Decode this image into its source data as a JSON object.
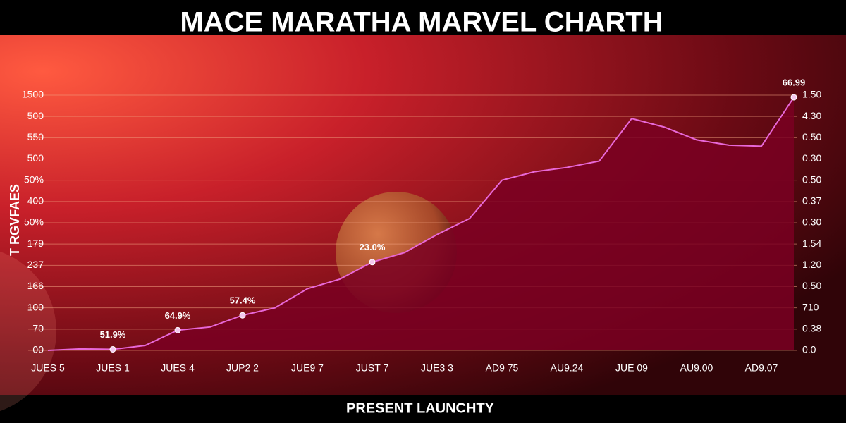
{
  "chart_data": {
    "type": "area",
    "title": "MACE MARATHA MARVEL CHARTH",
    "y_label": "T RGVFAES",
    "footer": "PRESENT LAUNCHTY",
    "categories": [
      "JUES 5",
      null,
      "JUES 1",
      null,
      "JUES 4",
      null,
      "JUP2 2",
      null,
      "JUE9 7",
      null,
      "JUST 7",
      null,
      "JUE3 3",
      null,
      "AD9 75",
      null,
      "AU9.24",
      null,
      "JUE 09",
      null,
      "AU9.00",
      null,
      "AD9.07",
      null
    ],
    "values": [
      0,
      0.07,
      0.05,
      0.23,
      0.95,
      1.1,
      1.65,
      2.0,
      2.9,
      3.35,
      4.15,
      4.6,
      5.45,
      6.2,
      8.0,
      8.4,
      8.6,
      8.9,
      10.9,
      10.5,
      9.9,
      9.65,
      9.6,
      11.9
    ],
    "color": "#e868d8",
    "area_color": "#7a0022",
    "annotations": [
      {
        "text": "51.9%",
        "index": 2
      },
      {
        "text": "64.9%",
        "index": 4
      },
      {
        "text": "57.4%",
        "index": 6
      },
      {
        "text": "23.0%",
        "index": 10
      },
      {
        "text": "66.99",
        "index": 23
      }
    ],
    "ylim": [
      0,
      12
    ],
    "yticks": [
      {
        "value": 0,
        "label": "00"
      },
      {
        "value": 1,
        "label": "70"
      },
      {
        "value": 2,
        "label": "100"
      },
      {
        "value": 3,
        "label": "166"
      },
      {
        "value": 4,
        "label": "237"
      },
      {
        "value": 5,
        "label": "179"
      },
      {
        "value": 6,
        "label": "50%"
      },
      {
        "value": 7,
        "label": "400"
      },
      {
        "value": 8,
        "label": "50%"
      },
      {
        "value": 9,
        "label": "500"
      },
      {
        "value": 10,
        "label": "550"
      },
      {
        "value": 11,
        "label": "500"
      },
      {
        "value": 12,
        "label": "1500"
      }
    ],
    "y2lim": [
      0,
      12
    ],
    "y2ticks": [
      {
        "value": 0,
        "label": "0.0"
      },
      {
        "value": 1,
        "label": "0.38"
      },
      {
        "value": 2,
        "label": "710"
      },
      {
        "value": 3,
        "label": "0.50"
      },
      {
        "value": 4,
        "label": "1.20"
      },
      {
        "value": 5,
        "label": "1.54"
      },
      {
        "value": 6,
        "label": "0.30"
      },
      {
        "value": 7,
        "label": "0.37"
      },
      {
        "value": 8,
        "label": "0.50"
      },
      {
        "value": 9,
        "label": "0.30"
      },
      {
        "value": 10,
        "label": "0.50"
      },
      {
        "value": 11,
        "label": "4.30"
      },
      {
        "value": 12,
        "label": "1.50"
      }
    ],
    "grid": true
  }
}
